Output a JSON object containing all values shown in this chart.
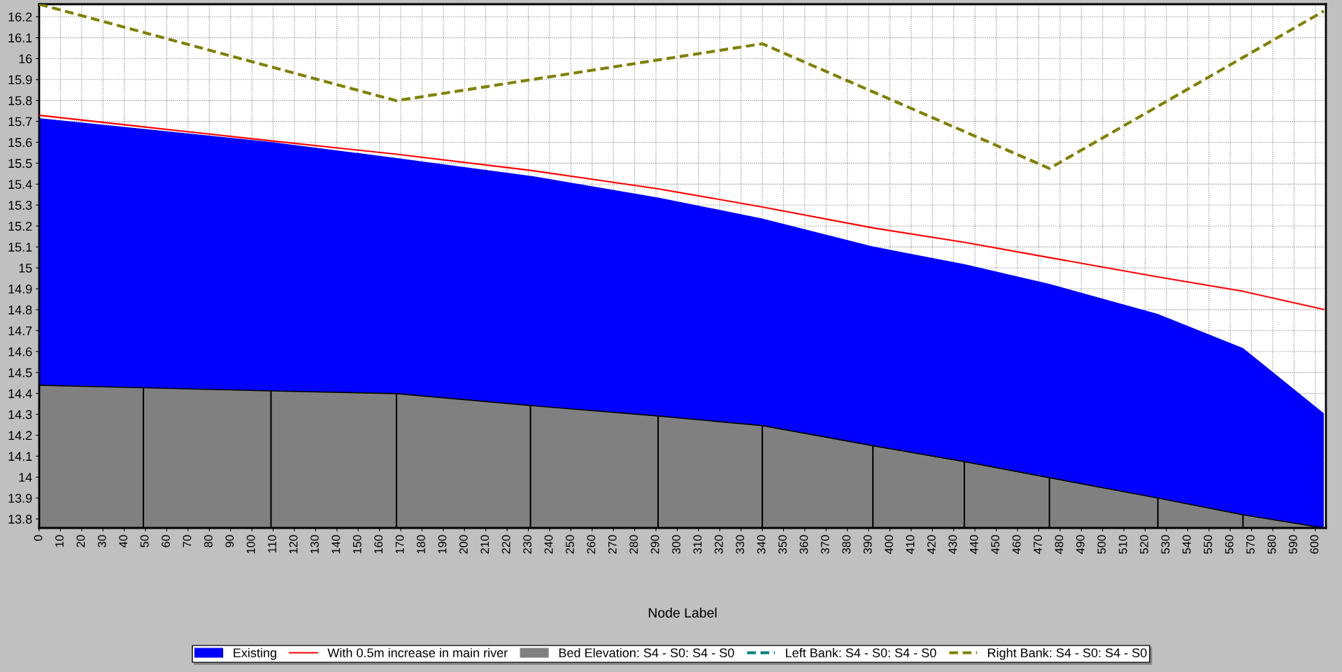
{
  "chart_data": {
    "type": "area",
    "xlabel": "Node Label",
    "xlim": [
      0,
      605
    ],
    "ylim": [
      13.757,
      16.26
    ],
    "xticks": [
      0,
      10,
      20,
      30,
      40,
      50,
      60,
      70,
      80,
      90,
      100,
      110,
      120,
      130,
      140,
      150,
      160,
      170,
      180,
      190,
      200,
      210,
      220,
      230,
      240,
      250,
      260,
      270,
      280,
      290,
      300,
      310,
      320,
      330,
      340,
      350,
      360,
      370,
      380,
      390,
      400,
      410,
      420,
      430,
      440,
      450,
      460,
      470,
      480,
      490,
      500,
      510,
      520,
      530,
      540,
      550,
      560,
      570,
      580,
      590,
      600
    ],
    "yticks": [
      13.8,
      13.9,
      14,
      14.1,
      14.2,
      14.3,
      14.4,
      14.5,
      14.6,
      14.7,
      14.8,
      14.9,
      15,
      15.1,
      15.2,
      15.3,
      15.4,
      15.5,
      15.6,
      15.7,
      15.8,
      15.9,
      16,
      16.1,
      16.2
    ],
    "grid": true,
    "legend": "bottom",
    "series": [
      {
        "name": "Existing",
        "type": "area",
        "color": "#0000ff",
        "x": [
          0,
          49,
          109,
          168,
          231,
          291,
          340,
          392,
          435,
          475,
          526,
          566,
          604
        ],
        "values": [
          15.715,
          15.664,
          15.602,
          15.525,
          15.44,
          15.336,
          15.236,
          15.102,
          15.018,
          14.923,
          14.78,
          14.617,
          14.305
        ]
      },
      {
        "name": "With 0.5m increase in main river",
        "type": "line",
        "color": "#ff0000",
        "line_style": "solid",
        "x": [
          0,
          49,
          109,
          168,
          231,
          291,
          340,
          392,
          435,
          475,
          526,
          566,
          604
        ],
        "values": [
          15.729,
          15.674,
          15.607,
          15.543,
          15.466,
          15.378,
          15.291,
          15.191,
          15.122,
          15.049,
          14.957,
          14.888,
          14.801
        ]
      },
      {
        "name": "Bed Elevation: S4 - S0: S4 - S0",
        "type": "area",
        "color": "#808080",
        "x": [
          0,
          49,
          109,
          168,
          231,
          291,
          340,
          392,
          435,
          475,
          526,
          566,
          604
        ],
        "values": [
          14.439,
          14.427,
          14.412,
          14.399,
          14.342,
          14.292,
          14.246,
          14.15,
          14.074,
          13.997,
          13.9,
          13.82,
          13.757
        ]
      },
      {
        "name": "Left Bank: S4 - S0: S4 - S0",
        "type": "line",
        "color": "#008080",
        "line_style": "dashed"
      },
      {
        "name": "Right Bank: S4 - S0: S4 - S0",
        "type": "line",
        "color": "#808000",
        "line_style": "dashed",
        "x": [
          0,
          168,
          340,
          475,
          604
        ],
        "values": [
          16.26,
          15.799,
          16.071,
          15.475,
          16.227
        ]
      }
    ]
  }
}
